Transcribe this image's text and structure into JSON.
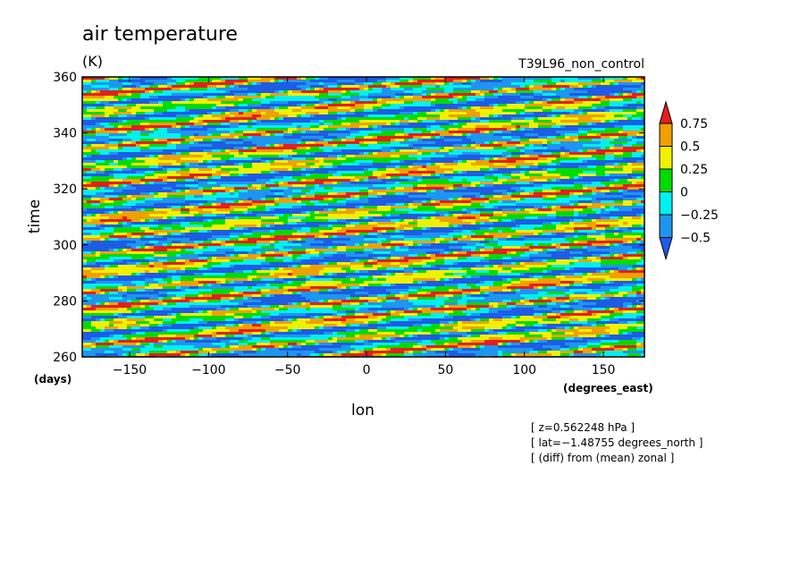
{
  "chart_data": {
    "type": "heatmap",
    "title": "air temperature",
    "units": "(K)",
    "run_label": "T39L96_non_control",
    "xlabel": "lon",
    "ylabel": "time",
    "x_unit": "(degrees_east)",
    "y_unit": "(days)",
    "xlim": [
      -180,
      176
    ],
    "ylim": [
      260,
      360
    ],
    "x_ticks": [
      -150,
      -100,
      -50,
      0,
      50,
      100,
      150
    ],
    "y_ticks": [
      260,
      280,
      300,
      320,
      340,
      360
    ],
    "x_tick_labels": [
      "−150",
      "−100",
      "−50",
      "0",
      "50",
      "100",
      "150"
    ],
    "y_tick_labels": [
      "260",
      "280",
      "300",
      "320",
      "340",
      "360"
    ],
    "colorbar": {
      "levels": [
        -0.5,
        -0.25,
        0,
        0.25,
        0.5,
        0.75
      ],
      "labels": [
        "0.75",
        "0.5",
        "0.25",
        "0",
        "−0.25",
        "−0.5"
      ],
      "colors": [
        "#1e5ce6",
        "#1e96f0",
        "#00f0f0",
        "#00dc00",
        "#f0f000",
        "#f0a000",
        "#e61e1e"
      ]
    },
    "annotations": [
      "[ z=0.562248 hPa ]",
      "[ lat=−1.48755 degrees_north ]",
      "[ (diff) from (mean) zonal ]"
    ]
  }
}
